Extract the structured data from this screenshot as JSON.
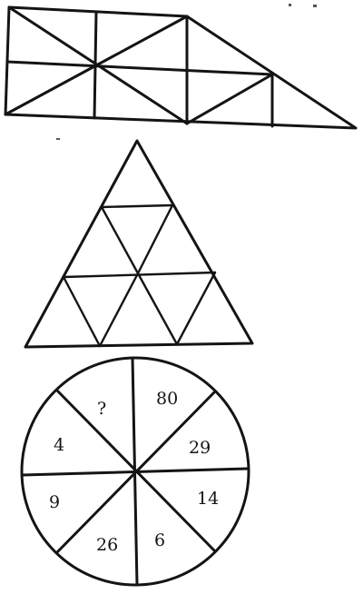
{
  "figures": [
    {
      "id": "parallelogram-figure",
      "shape": "trapezoid divided into triangles"
    },
    {
      "id": "triangle-figure",
      "shape": "triangle divided into smaller triangles"
    },
    {
      "id": "circle-figure",
      "shape": "circle divided into 8 sectors"
    }
  ],
  "circle_puzzle": {
    "sectors": [
      "?",
      "80",
      "29",
      "14",
      "6",
      "26",
      "9",
      "4"
    ]
  },
  "colors": {
    "ink": "#141414",
    "paper": "#ffffff"
  }
}
